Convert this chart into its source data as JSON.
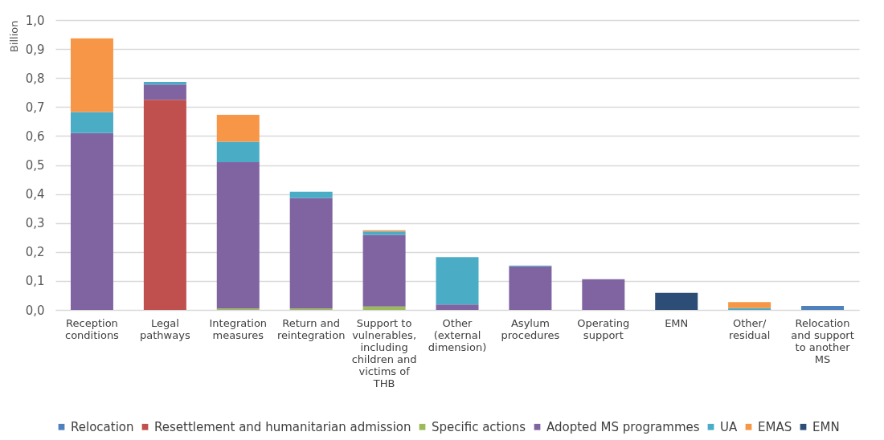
{
  "chart_data": {
    "type": "bar",
    "stacked": true,
    "ylabel": "Billion",
    "categories": [
      "Reception conditions",
      "Legal pathways",
      "Integration measures",
      "Return and reintegration",
      "Support to vulnerables, including children and victims of THB",
      "Other (external dimension)",
      "Asylum procedures",
      "Operating support",
      "EMN",
      "Other/ residual",
      "Relocation and support to another MS"
    ],
    "series": [
      {
        "name": "Relocation",
        "color": "#4f81bd",
        "values": [
          null,
          null,
          null,
          null,
          null,
          null,
          null,
          null,
          null,
          null,
          0.014
        ]
      },
      {
        "name": "Resettlement and humanitarian admission",
        "color": "#c0504d",
        "values": [
          null,
          0.725,
          null,
          null,
          null,
          null,
          null,
          null,
          null,
          null,
          null
        ]
      },
      {
        "name": "Specific actions",
        "color": "#9bbb59",
        "values": [
          null,
          null,
          0.005,
          0.005,
          0.012,
          null,
          null,
          null,
          null,
          null,
          null
        ]
      },
      {
        "name": "Adopted MS programmes",
        "color": "#8064a2",
        "values": [
          0.61,
          0.053,
          0.505,
          0.381,
          0.247,
          0.019,
          0.15,
          0.106,
          null,
          null,
          null
        ]
      },
      {
        "name": "UA",
        "color": "#4bacc6",
        "values": [
          0.073,
          0.009,
          0.07,
          0.022,
          0.012,
          0.163,
          0.003,
          null,
          null,
          0.006,
          null
        ]
      },
      {
        "name": "EMAS",
        "color": "#f79646",
        "values": [
          0.254,
          null,
          0.093,
          null,
          0.004,
          null,
          null,
          null,
          null,
          0.021,
          null
        ]
      },
      {
        "name": "EMN",
        "color": "#2c4d75",
        "values": [
          null,
          null,
          null,
          null,
          null,
          null,
          null,
          null,
          0.059,
          null,
          null
        ]
      }
    ],
    "ylim": [
      0,
      1
    ],
    "yticks": [
      {
        "value": 0,
        "label": "0,0"
      },
      {
        "value": 0.1,
        "label": "0,1"
      },
      {
        "value": 0.2,
        "label": "0,2"
      },
      {
        "value": 0.3,
        "label": "0,3"
      },
      {
        "value": 0.4,
        "label": "0,4"
      },
      {
        "value": 0.5,
        "label": "0,5"
      },
      {
        "value": 0.6,
        "label": "0,6"
      },
      {
        "value": 0.7,
        "label": "0,7"
      },
      {
        "value": 0.8,
        "label": "0,8"
      },
      {
        "value": 0.9,
        "label": "0,9"
      },
      {
        "value": 1,
        "label": "1,0"
      }
    ],
    "grid": "y",
    "legend": "bottom"
  }
}
